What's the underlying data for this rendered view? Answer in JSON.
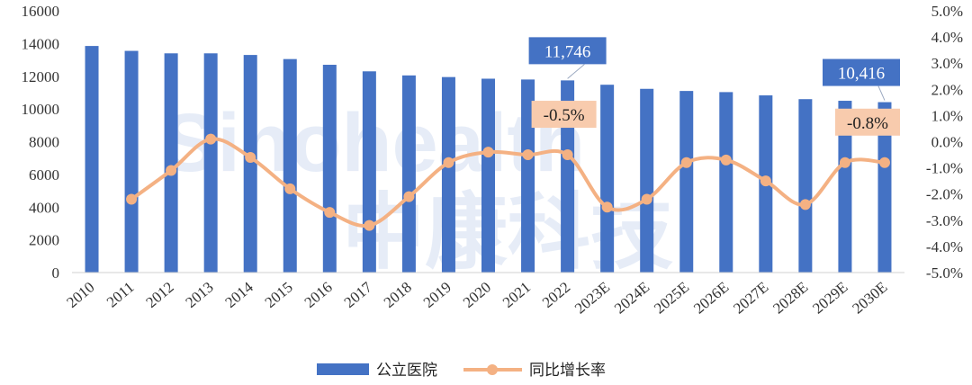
{
  "chart_data": {
    "type": "bar+line",
    "categories": [
      "2010",
      "2011",
      "2012",
      "2013",
      "2014",
      "2015",
      "2016",
      "2017",
      "2018",
      "2019",
      "2020",
      "2021",
      "2022",
      "2023E",
      "2024E",
      "2025E",
      "2026E",
      "2027E",
      "2028E",
      "2029E",
      "2030E"
    ],
    "series": [
      {
        "name": "公立医院",
        "type": "bar",
        "axis": "left",
        "values": [
          13850,
          13550,
          13400,
          13400,
          13300,
          13050,
          12700,
          12300,
          12050,
          11950,
          11850,
          11800,
          11746,
          11480,
          11230,
          11100,
          11030,
          10830,
          10600,
          10500,
          10416
        ]
      },
      {
        "name": "同比增长率",
        "type": "line",
        "axis": "right",
        "values": [
          null,
          -2.2,
          -1.1,
          0.1,
          -0.6,
          -1.8,
          -2.7,
          -3.2,
          -2.1,
          -0.8,
          -0.4,
          -0.5,
          -0.5,
          -2.5,
          -2.2,
          -0.8,
          -0.7,
          -1.5,
          -2.4,
          -0.8,
          -0.8
        ]
      }
    ],
    "y_left": {
      "min": 0,
      "max": 16000,
      "ticks": [
        "0",
        "2000",
        "4000",
        "6000",
        "8000",
        "10000",
        "12000",
        "14000",
        "16000"
      ]
    },
    "y_right": {
      "min": -5,
      "max": 5,
      "ticks": [
        "-5.0%",
        "-4.0%",
        "-3.0%",
        "-2.0%",
        "-1.0%",
        "0.0%",
        "1.0%",
        "2.0%",
        "3.0%",
        "4.0%",
        "5.0%"
      ]
    },
    "annotations": [
      {
        "category": "2022",
        "series": "公立医院",
        "text": "11,746"
      },
      {
        "category": "2030E",
        "series": "公立医院",
        "text": "10,416"
      },
      {
        "category": "2022",
        "series": "同比增长率",
        "text": "-0.5%"
      },
      {
        "category": "2030E",
        "series": "同比增长率",
        "text": "-0.8%"
      }
    ],
    "legend_position": "bottom",
    "grid": false,
    "colors": {
      "bar": "#4472C4",
      "line": "#F4B183",
      "bar_callout": "#4472C4",
      "line_callout": "#F8CBAD"
    }
  },
  "watermark": {
    "line1": "Sinohealth",
    "line2": "中康科技"
  }
}
